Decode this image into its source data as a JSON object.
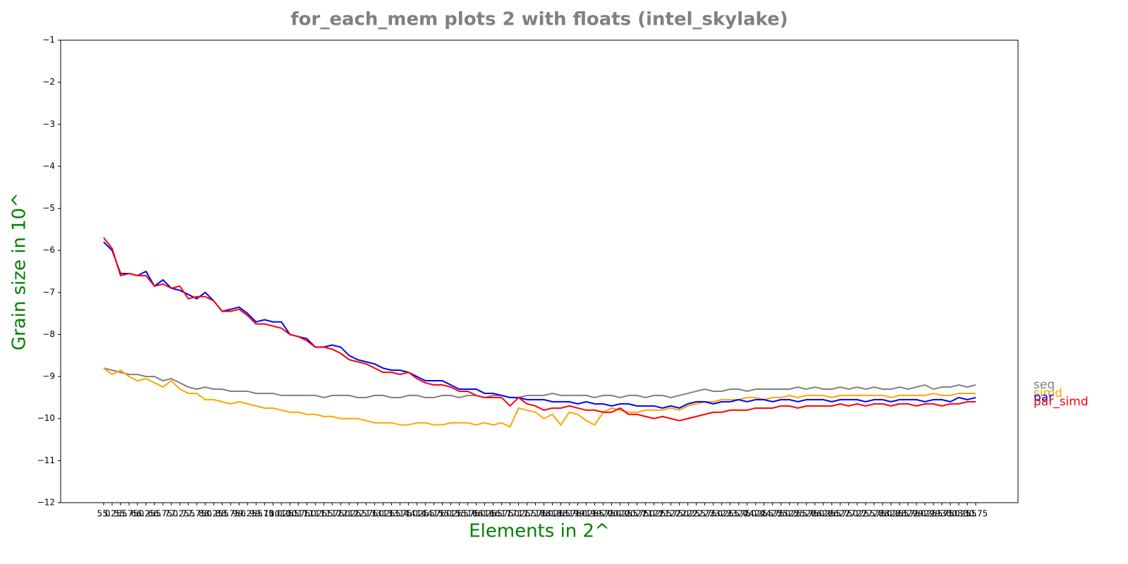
{
  "chart_data": {
    "type": "line",
    "title": "for_each_mem plots 2 with floats  (intel_skylake)",
    "x_label": "Elements in 2^",
    "y_label": "Grain size in 10^",
    "categories": [
      "5.0",
      "5.25",
      "5.5",
      "5.75",
      "6.0",
      "6.25",
      "6.5",
      "6.75",
      "7.0",
      "7.25",
      "7.5",
      "7.75",
      "8.0",
      "8.25",
      "8.5",
      "8.75",
      "9.0",
      "9.25",
      "9.5",
      "9.75",
      "10.0",
      "10.25",
      "10.5",
      "10.75",
      "11.0",
      "11.25",
      "11.5",
      "11.75",
      "12.0",
      "12.25",
      "12.5",
      "12.75",
      "13.0",
      "13.25",
      "13.5",
      "13.75",
      "14.0",
      "14.25",
      "14.5",
      "14.75",
      "15.0",
      "15.25",
      "15.5",
      "15.75",
      "16.0",
      "16.25",
      "16.5",
      "16.75",
      "17.0",
      "17.25",
      "17.5",
      "17.75",
      "18.0",
      "18.25",
      "18.5",
      "18.75",
      "19.0",
      "19.25",
      "19.5",
      "19.75",
      "20.0",
      "20.25",
      "20.5",
      "20.75",
      "21.0",
      "21.25",
      "21.5",
      "21.75",
      "22.0",
      "22.25",
      "22.5",
      "22.75",
      "23.0",
      "23.25",
      "23.5",
      "23.75",
      "24.0",
      "24.25",
      "24.5",
      "24.75",
      "25.0",
      "25.25",
      "25.5",
      "25.75",
      "26.0",
      "26.25",
      "26.5",
      "26.75",
      "27.0",
      "27.25",
      "27.5",
      "27.75",
      "28.0",
      "28.25",
      "28.5",
      "28.75",
      "29.0",
      "29.25",
      "29.5",
      "29.75",
      "30.0",
      "30.25",
      "30.5",
      "30.75"
    ],
    "series": [
      {
        "name": "seq",
        "color": "#808080",
        "values": [
          -8.8,
          -8.85,
          -8.9,
          -8.95,
          -8.95,
          -9.0,
          -9.0,
          -9.1,
          -9.05,
          -9.15,
          -9.25,
          -9.3,
          -9.25,
          -9.3,
          -9.3,
          -9.35,
          -9.35,
          -9.35,
          -9.4,
          -9.4,
          -9.4,
          -9.45,
          -9.45,
          -9.45,
          -9.45,
          -9.45,
          -9.5,
          -9.45,
          -9.45,
          -9.45,
          -9.5,
          -9.5,
          -9.45,
          -9.45,
          -9.5,
          -9.5,
          -9.45,
          -9.45,
          -9.5,
          -9.5,
          -9.45,
          -9.45,
          -9.5,
          -9.45,
          -9.45,
          -9.5,
          -9.45,
          -9.45,
          -9.5,
          -9.5,
          -9.45,
          -9.45,
          -9.45,
          -9.4,
          -9.45,
          -9.45,
          -9.45,
          -9.45,
          -9.5,
          -9.45,
          -9.45,
          -9.5,
          -9.45,
          -9.45,
          -9.5,
          -9.45,
          -9.45,
          -9.5,
          -9.45,
          -9.4,
          -9.35,
          -9.3,
          -9.35,
          -9.35,
          -9.3,
          -9.3,
          -9.35,
          -9.3,
          -9.3,
          -9.3,
          -9.3,
          -9.3,
          -9.25,
          -9.3,
          -9.25,
          -9.3,
          -9.3,
          -9.25,
          -9.3,
          -9.25,
          -9.3,
          -9.25,
          -9.3,
          -9.3,
          -9.25,
          -9.3,
          -9.25,
          -9.2,
          -9.3,
          -9.25,
          -9.25,
          -9.2,
          -9.25,
          -9.2
        ]
      },
      {
        "name": "simd",
        "color": "#ffa500",
        "values": [
          -8.8,
          -8.95,
          -8.85,
          -9.0,
          -9.1,
          -9.05,
          -9.15,
          -9.25,
          -9.1,
          -9.3,
          -9.4,
          -9.4,
          -9.55,
          -9.55,
          -9.6,
          -9.65,
          -9.6,
          -9.65,
          -9.7,
          -9.75,
          -9.75,
          -9.8,
          -9.85,
          -9.85,
          -9.9,
          -9.9,
          -9.95,
          -9.95,
          -10.0,
          -10.0,
          -10.0,
          -10.05,
          -10.1,
          -10.1,
          -10.1,
          -10.15,
          -10.15,
          -10.1,
          -10.1,
          -10.15,
          -10.15,
          -10.1,
          -10.1,
          -10.1,
          -10.15,
          -10.1,
          -10.15,
          -10.1,
          -10.2,
          -9.75,
          -9.8,
          -9.85,
          -10.0,
          -9.9,
          -10.15,
          -9.85,
          -9.9,
          -10.05,
          -10.15,
          -9.85,
          -9.75,
          -9.8,
          -9.85,
          -9.85,
          -9.8,
          -9.8,
          -9.8,
          -9.75,
          -9.8,
          -9.7,
          -9.65,
          -9.6,
          -9.6,
          -9.55,
          -9.55,
          -9.55,
          -9.5,
          -9.5,
          -9.55,
          -9.5,
          -9.5,
          -9.45,
          -9.5,
          -9.45,
          -9.45,
          -9.45,
          -9.5,
          -9.45,
          -9.45,
          -9.45,
          -9.45,
          -9.45,
          -9.45,
          -9.5,
          -9.45,
          -9.45,
          -9.45,
          -9.45,
          -9.4,
          -9.45,
          -9.45,
          -9.4,
          -9.4,
          -9.4
        ]
      },
      {
        "name": "par",
        "color": "#0000ff",
        "values": [
          -5.8,
          -6.0,
          -6.55,
          -6.55,
          -6.6,
          -6.5,
          -6.85,
          -6.7,
          -6.9,
          -6.95,
          -7.05,
          -7.15,
          -7.0,
          -7.2,
          -7.45,
          -7.4,
          -7.35,
          -7.5,
          -7.7,
          -7.65,
          -7.7,
          -7.7,
          -8.0,
          -8.05,
          -8.1,
          -8.3,
          -8.3,
          -8.25,
          -8.3,
          -8.5,
          -8.6,
          -8.65,
          -8.7,
          -8.8,
          -8.85,
          -8.85,
          -8.9,
          -9.0,
          -9.1,
          -9.1,
          -9.1,
          -9.2,
          -9.3,
          -9.3,
          -9.3,
          -9.4,
          -9.4,
          -9.45,
          -9.5,
          -9.5,
          -9.55,
          -9.55,
          -9.55,
          -9.6,
          -9.6,
          -9.6,
          -9.65,
          -9.6,
          -9.65,
          -9.65,
          -9.7,
          -9.65,
          -9.65,
          -9.7,
          -9.7,
          -9.7,
          -9.75,
          -9.7,
          -9.75,
          -9.65,
          -9.6,
          -9.6,
          -9.65,
          -9.6,
          -9.6,
          -9.55,
          -9.6,
          -9.55,
          -9.55,
          -9.6,
          -9.55,
          -9.55,
          -9.6,
          -9.55,
          -9.55,
          -9.55,
          -9.6,
          -9.55,
          -9.55,
          -9.55,
          -9.6,
          -9.55,
          -9.55,
          -9.6,
          -9.55,
          -9.55,
          -9.55,
          -9.6,
          -9.55,
          -9.55,
          -9.6,
          -9.5,
          -9.55,
          -9.5
        ]
      },
      {
        "name": "par_simd",
        "color": "#ff0000",
        "values": [
          -5.7,
          -5.95,
          -6.6,
          -6.55,
          -6.6,
          -6.6,
          -6.85,
          -6.8,
          -6.9,
          -6.85,
          -7.15,
          -7.1,
          -7.1,
          -7.2,
          -7.45,
          -7.45,
          -7.4,
          -7.55,
          -7.75,
          -7.75,
          -7.8,
          -7.85,
          -8.0,
          -8.05,
          -8.15,
          -8.3,
          -8.3,
          -8.35,
          -8.45,
          -8.6,
          -8.65,
          -8.7,
          -8.8,
          -8.9,
          -8.9,
          -8.95,
          -8.9,
          -9.05,
          -9.15,
          -9.2,
          -9.2,
          -9.25,
          -9.35,
          -9.35,
          -9.45,
          -9.5,
          -9.5,
          -9.5,
          -9.7,
          -9.5,
          -9.65,
          -9.7,
          -9.8,
          -9.75,
          -9.75,
          -9.7,
          -9.75,
          -9.8,
          -9.8,
          -9.85,
          -9.85,
          -9.75,
          -9.9,
          -9.9,
          -9.95,
          -10.0,
          -9.95,
          -10.0,
          -10.05,
          -10.0,
          -9.95,
          -9.9,
          -9.85,
          -9.85,
          -9.8,
          -9.8,
          -9.8,
          -9.75,
          -9.75,
          -9.75,
          -9.7,
          -9.7,
          -9.75,
          -9.7,
          -9.7,
          -9.7,
          -9.7,
          -9.65,
          -9.7,
          -9.65,
          -9.7,
          -9.65,
          -9.65,
          -9.7,
          -9.65,
          -9.65,
          -9.7,
          -9.65,
          -9.65,
          -9.7,
          -9.65,
          -9.65,
          -9.6,
          -9.6
        ]
      }
    ],
    "ylim": [
      -12,
      -1
    ],
    "yticks": [
      {
        "value": -12,
        "label": "−12"
      },
      {
        "value": -11,
        "label": "−11"
      },
      {
        "value": -10,
        "label": "−10"
      },
      {
        "value": -9,
        "label": "−9"
      },
      {
        "value": -8,
        "label": "−8"
      },
      {
        "value": -7,
        "label": "−7"
      },
      {
        "value": -6,
        "label": "−6"
      },
      {
        "value": -5,
        "label": "−5"
      },
      {
        "value": -4,
        "label": "−4"
      },
      {
        "value": -3,
        "label": "−3"
      },
      {
        "value": -2,
        "label": "−2"
      },
      {
        "value": -1,
        "label": "−1"
      }
    ],
    "legend": "right"
  }
}
